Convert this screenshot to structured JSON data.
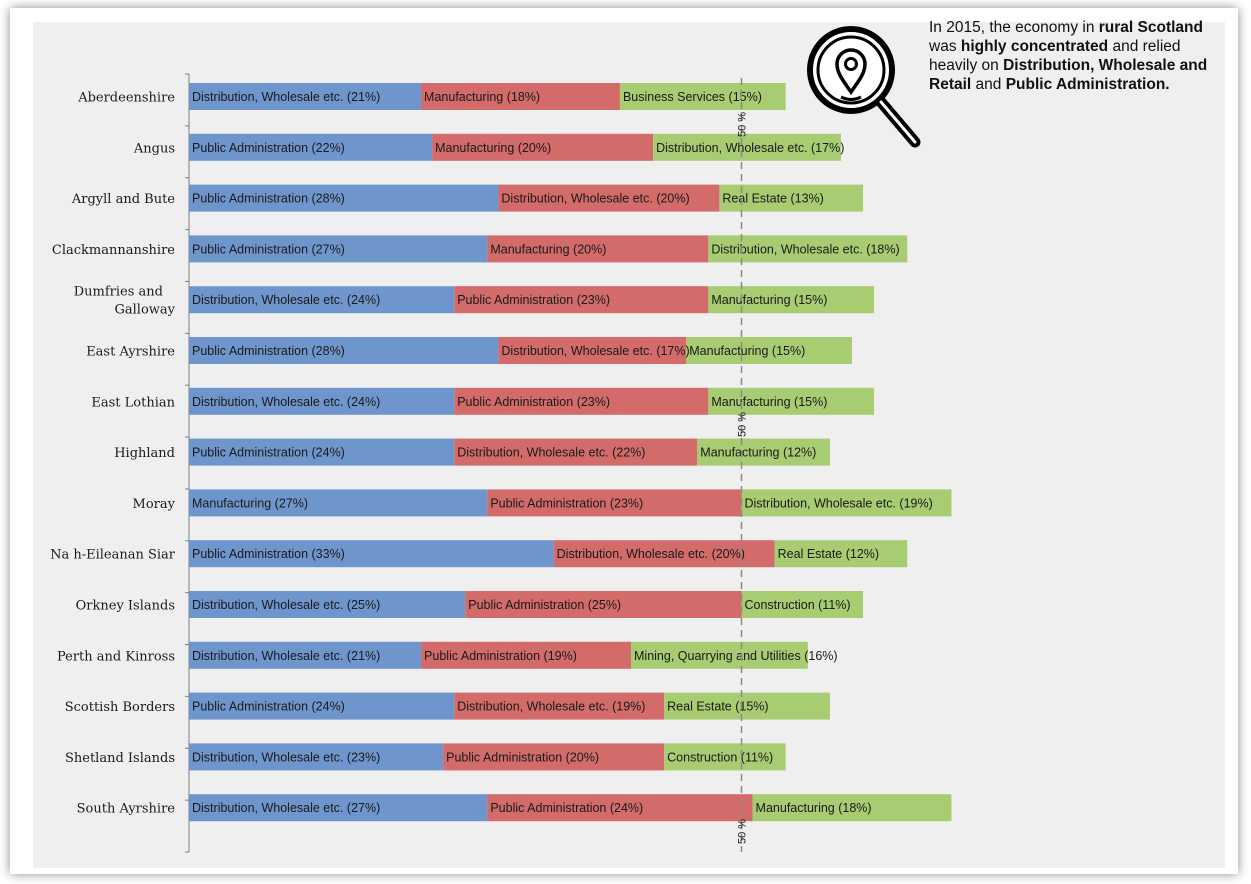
{
  "callout": {
    "p1": "In 2015, the economy in ",
    "b1": "rural Scotland",
    "p2": " was ",
    "b2": "highly concentrated",
    "p3": " and  relied heavily on ",
    "b3": "Distribution, Wholesale and Retail",
    "p4": " and ",
    "b4": "Public Administration."
  },
  "icons": {
    "magnifier": "magnifier-location-pin-icon"
  },
  "colors": {
    "segment1": "#6f96cc",
    "segment2": "#d26b69",
    "segment3": "#a7cc72",
    "text": "#1a1a1a",
    "reference_line": "#8a8a8a"
  },
  "chart_data": {
    "type": "bar",
    "orientation": "horizontal-stacked",
    "unit": "%",
    "reference_line": {
      "value": 50,
      "label": "50 %"
    },
    "categories": [
      "Aberdeenshire",
      "Angus",
      "Argyll and Bute",
      "Clackmannanshire",
      "Dumfries and Galloway",
      "East Ayrshire",
      "East Lothian",
      "Highland",
      "Moray",
      "Na h-Eileanan Siar",
      "Orkney Islands",
      "Perth and Kinross",
      "Scottish Borders",
      "Shetland Islands",
      "South Ayrshire"
    ],
    "rows": [
      {
        "region": "Aberdeenshire",
        "segments": [
          {
            "label": "Distribution, Wholesale etc. (21%)",
            "value": 21
          },
          {
            "label": "Manufacturing  (18%)",
            "value": 18
          },
          {
            "label": "Business Services (15%)",
            "value": 15
          }
        ]
      },
      {
        "region": "Angus",
        "segments": [
          {
            "label": "Public Administration (22%)",
            "value": 22
          },
          {
            "label": "Manufacturing  (20%)",
            "value": 20
          },
          {
            "label": "Distribution, Wholesale etc. (17%)",
            "value": 17
          }
        ]
      },
      {
        "region": "Argyll and Bute",
        "segments": [
          {
            "label": "Public Administration (28%)",
            "value": 28
          },
          {
            "label": "Distribution, Wholesale etc. (20%)",
            "value": 20
          },
          {
            "label": "Real Estate (13%)",
            "value": 13
          }
        ]
      },
      {
        "region": "Clackmannanshire",
        "segments": [
          {
            "label": "Public Administration (27%)",
            "value": 27
          },
          {
            "label": "Manufacturing  (20%)",
            "value": 20
          },
          {
            "label": "Distribution, Wholesale etc. (18%)",
            "value": 18
          }
        ]
      },
      {
        "region": "Dumfries and Galloway",
        "segments": [
          {
            "label": "Distribution, Wholesale etc. (24%)",
            "value": 24
          },
          {
            "label": "Public Administration (23%)",
            "value": 23
          },
          {
            "label": "Manufacturing (15%)",
            "value": 15
          }
        ]
      },
      {
        "region": "East Ayrshire",
        "segments": [
          {
            "label": "Public Administration (28%)",
            "value": 28
          },
          {
            "label": "Distribution, Wholesale etc. (17%)",
            "value": 17
          },
          {
            "label": "Manufacturing (15%)",
            "value": 15
          }
        ]
      },
      {
        "region": "East Lothian",
        "segments": [
          {
            "label": "Distribution, Wholesale etc. (24%)",
            "value": 24
          },
          {
            "label": "Public Administration (23%)",
            "value": 23
          },
          {
            "label": "Manufacturing (15%)",
            "value": 15
          }
        ]
      },
      {
        "region": "Highland",
        "segments": [
          {
            "label": "Public Administration (24%)",
            "value": 24
          },
          {
            "label": "Distribution, Wholesale etc. (22%)",
            "value": 22
          },
          {
            "label": "Manufacturing (12%)",
            "value": 12
          }
        ]
      },
      {
        "region": "Moray",
        "segments": [
          {
            "label": "Manufacturing (27%)",
            "value": 27
          },
          {
            "label": "Public Administration (23%)",
            "value": 23
          },
          {
            "label": "Distribution, Wholesale etc. (19%)",
            "value": 19
          }
        ]
      },
      {
        "region": "Na h-Eileanan Siar",
        "segments": [
          {
            "label": "Public Administration (33%)",
            "value": 33
          },
          {
            "label": "Distribution, Wholesale etc. (20%)",
            "value": 20
          },
          {
            "label": "Real Estate (12%)",
            "value": 12
          }
        ]
      },
      {
        "region": "Orkney Islands",
        "segments": [
          {
            "label": "Distribution, Wholesale etc. (25%)",
            "value": 25
          },
          {
            "label": "Public Administration (25%)",
            "value": 25
          },
          {
            "label": "Construction (11%)",
            "value": 11
          }
        ]
      },
      {
        "region": "Perth and Kinross",
        "segments": [
          {
            "label": "Distribution, Wholesale etc. (21%)",
            "value": 21
          },
          {
            "label": "Public Administration (19%)",
            "value": 19
          },
          {
            "label": "Mining, Quarrying and Utilities (16%)",
            "value": 16
          }
        ]
      },
      {
        "region": "Scottish Borders",
        "segments": [
          {
            "label": "Public Administration (24%)",
            "value": 24
          },
          {
            "label": "Distribution, Wholesale etc. (19%)",
            "value": 19
          },
          {
            "label": "Real Estate (15%)",
            "value": 15
          }
        ]
      },
      {
        "region": "Shetland Islands",
        "segments": [
          {
            "label": "Distribution, Wholesale etc. (23%)",
            "value": 23
          },
          {
            "label": "Public Administration (20%)",
            "value": 20
          },
          {
            "label": "Construction (11%)",
            "value": 11
          }
        ]
      },
      {
        "region": "South Ayrshire",
        "segments": [
          {
            "label": "Distribution, Wholesale etc. (27%)",
            "value": 27
          },
          {
            "label": "Public Administration (24%)",
            "value": 24
          },
          {
            "label": "Manufacturing  (18%)",
            "value": 18
          }
        ]
      }
    ]
  }
}
